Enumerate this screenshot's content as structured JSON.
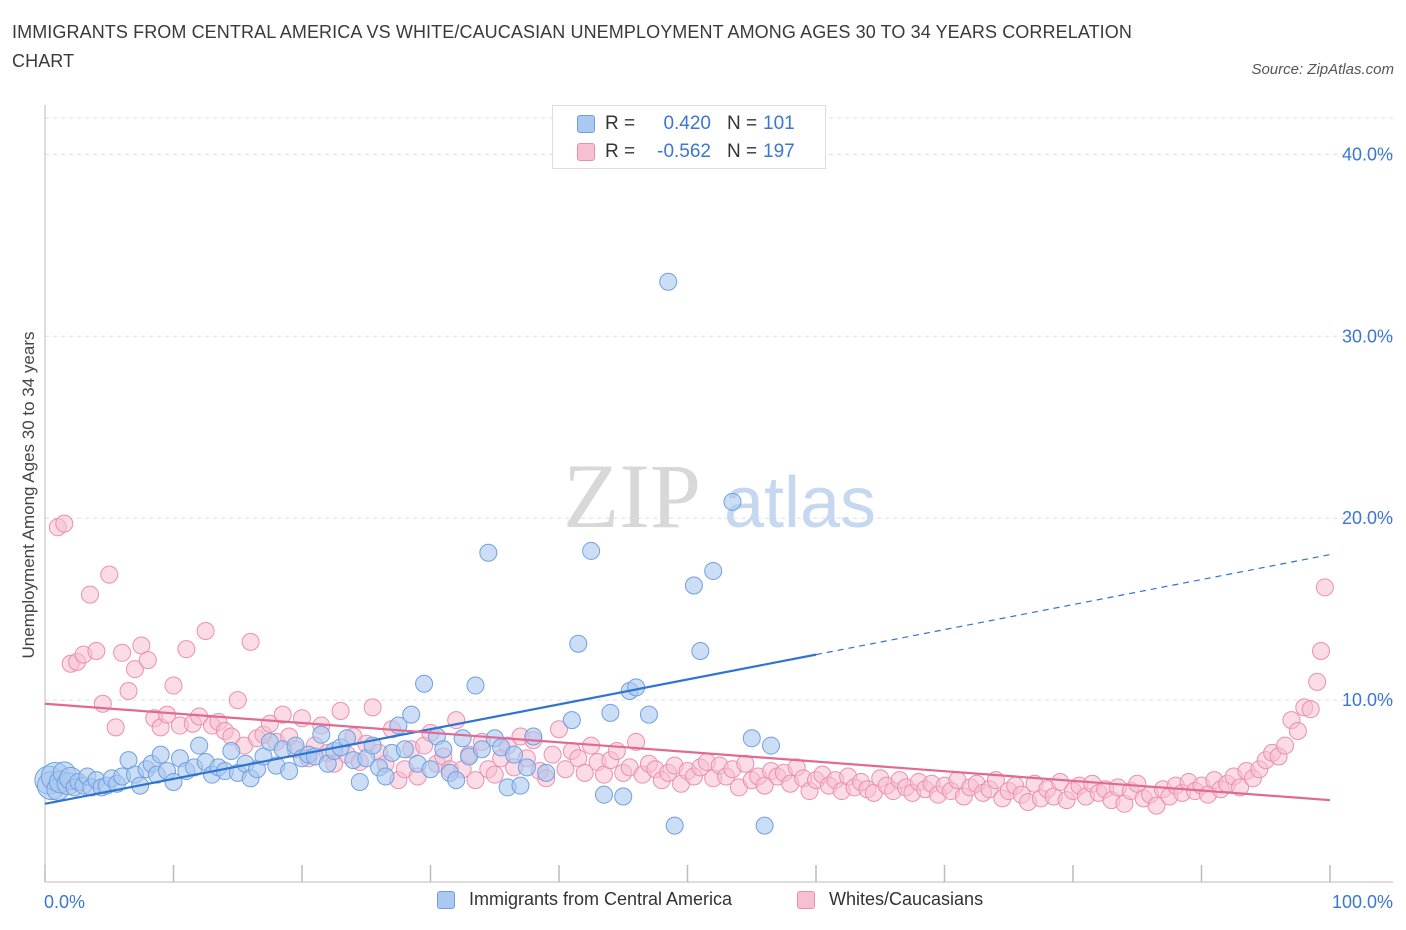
{
  "title": "IMMIGRANTS FROM CENTRAL AMERICA VS WHITE/CAUCASIAN UNEMPLOYMENT AMONG AGES 30 TO 34 YEARS CORRELATION CHART",
  "source": "Source: ZipAtlas.com",
  "watermark": {
    "part1": "ZIP",
    "part2": "atlas"
  },
  "colors": {
    "blue_fill": "#aac8f0",
    "blue_stroke": "#6fa0e0",
    "blue_line": "#2e74d0",
    "pink_fill": "#f7c0d2",
    "pink_stroke": "#ec8fae",
    "pink_line": "#e06a93",
    "axis_text": "#3b77d0",
    "grid": "#dddddd"
  },
  "legend": {
    "rows": [
      {
        "r_label": "R =",
        "r_value": "0.420",
        "n_label": "N =",
        "n_value": "101"
      },
      {
        "r_label": "R =",
        "r_value": "-0.562",
        "n_label": "N =",
        "n_value": "197"
      }
    ]
  },
  "bottom_legend": [
    "Immigrants from Central America",
    "Whites/Caucasians"
  ],
  "chart_data": {
    "type": "scatter",
    "title": "IMMIGRANTS FROM CENTRAL AMERICA VS WHITE/CAUCASIAN UNEMPLOYMENT AMONG AGES 30 TO 34 YEARS CORRELATION CHART",
    "xlabel": "",
    "ylabel": "Unemployment Among Ages 30 to 34 years",
    "xlim": [
      0,
      100
    ],
    "ylim": [
      0,
      42
    ],
    "x_tick_labels": [
      "0.0%",
      "100.0%"
    ],
    "y_ticks": [
      10,
      20,
      30,
      40
    ],
    "y_tick_labels": [
      "10.0%",
      "20.0%",
      "30.0%",
      "40.0%"
    ],
    "grid": true,
    "legend_position": "top-center",
    "series": [
      {
        "name": "Immigrants from Central America",
        "color": "#aac8f0",
        "R": 0.42,
        "N": 101,
        "trend": {
          "x0": 0,
          "y0": 4.3,
          "x1": 60,
          "y1": 12.5,
          "extended_to_x": 100,
          "extended_y": 18.0
        },
        "points": [
          [
            0.3,
            5.6
          ],
          [
            0.5,
            5.3
          ],
          [
            0.8,
            5.8
          ],
          [
            1.0,
            5.1
          ],
          [
            1.2,
            5.5
          ],
          [
            1.5,
            6.0
          ],
          [
            1.8,
            5.4
          ],
          [
            2.0,
            5.7
          ],
          [
            2.3,
            5.2
          ],
          [
            2.6,
            5.5
          ],
          [
            3.0,
            5.3
          ],
          [
            3.3,
            5.8
          ],
          [
            3.6,
            5.2
          ],
          [
            4.0,
            5.6
          ],
          [
            4.4,
            5.2
          ],
          [
            4.8,
            5.3
          ],
          [
            5.2,
            5.7
          ],
          [
            5.6,
            5.4
          ],
          [
            6.0,
            5.8
          ],
          [
            6.5,
            6.7
          ],
          [
            7.0,
            5.9
          ],
          [
            7.4,
            5.3
          ],
          [
            7.9,
            6.2
          ],
          [
            8.3,
            6.5
          ],
          [
            8.7,
            5.9
          ],
          [
            9.0,
            7.0
          ],
          [
            9.5,
            6.1
          ],
          [
            10.0,
            5.5
          ],
          [
            10.5,
            6.8
          ],
          [
            11.0,
            6.1
          ],
          [
            11.6,
            6.3
          ],
          [
            12.0,
            7.5
          ],
          [
            12.5,
            6.6
          ],
          [
            13.0,
            5.9
          ],
          [
            13.5,
            6.3
          ],
          [
            14.0,
            6.1
          ],
          [
            14.5,
            7.2
          ],
          [
            15.0,
            6.0
          ],
          [
            15.6,
            6.5
          ],
          [
            16.0,
            5.7
          ],
          [
            16.5,
            6.2
          ],
          [
            17.0,
            6.9
          ],
          [
            17.5,
            7.7
          ],
          [
            18.0,
            6.4
          ],
          [
            18.5,
            7.3
          ],
          [
            19.0,
            6.1
          ],
          [
            19.5,
            7.5
          ],
          [
            20.0,
            6.8
          ],
          [
            20.5,
            7.0
          ],
          [
            21.0,
            6.9
          ],
          [
            21.5,
            8.1
          ],
          [
            22.0,
            6.5
          ],
          [
            22.5,
            7.2
          ],
          [
            23.0,
            7.4
          ],
          [
            23.5,
            7.9
          ],
          [
            24.0,
            6.7
          ],
          [
            24.5,
            5.5
          ],
          [
            25.0,
            6.8
          ],
          [
            25.5,
            7.5
          ],
          [
            26.0,
            6.3
          ],
          [
            26.5,
            5.8
          ],
          [
            27.0,
            7.1
          ],
          [
            27.5,
            8.6
          ],
          [
            28.0,
            7.3
          ],
          [
            28.5,
            9.2
          ],
          [
            29.0,
            6.5
          ],
          [
            29.5,
            10.9
          ],
          [
            30.0,
            6.2
          ],
          [
            30.5,
            8.0
          ],
          [
            31.0,
            7.3
          ],
          [
            31.5,
            6.0
          ],
          [
            32.0,
            5.6
          ],
          [
            32.5,
            7.9
          ],
          [
            33.0,
            6.9
          ],
          [
            33.5,
            10.8
          ],
          [
            34.0,
            7.3
          ],
          [
            34.5,
            18.1
          ],
          [
            35.0,
            7.9
          ],
          [
            35.5,
            7.4
          ],
          [
            36.0,
            5.2
          ],
          [
            36.5,
            7.0
          ],
          [
            37.0,
            5.3
          ],
          [
            37.5,
            6.3
          ],
          [
            38.0,
            8.0
          ],
          [
            39.0,
            6.0
          ],
          [
            41.0,
            8.9
          ],
          [
            41.5,
            13.1
          ],
          [
            42.5,
            18.2
          ],
          [
            43.5,
            4.8
          ],
          [
            44.0,
            9.3
          ],
          [
            45.0,
            4.7
          ],
          [
            45.5,
            10.5
          ],
          [
            46.0,
            10.7
          ],
          [
            47.0,
            9.2
          ],
          [
            48.5,
            33.0
          ],
          [
            49.0,
            3.1
          ],
          [
            50.5,
            16.3
          ],
          [
            51.0,
            12.7
          ],
          [
            52.0,
            17.1
          ],
          [
            53.5,
            20.9
          ],
          [
            55.0,
            7.9
          ],
          [
            56.0,
            3.1
          ],
          [
            56.5,
            7.5
          ]
        ]
      },
      {
        "name": "Whites/Caucasians",
        "color": "#f7c0d2",
        "R": -0.562,
        "N": 197,
        "trend": {
          "x0": 0,
          "y0": 9.8,
          "x1": 100,
          "y1": 4.5
        },
        "points": [
          [
            1.0,
            19.5
          ],
          [
            1.5,
            19.7
          ],
          [
            2.0,
            12.0
          ],
          [
            2.5,
            12.1
          ],
          [
            3.0,
            12.5
          ],
          [
            3.5,
            15.8
          ],
          [
            4.0,
            12.7
          ],
          [
            4.5,
            9.8
          ],
          [
            5.0,
            16.9
          ],
          [
            5.5,
            8.5
          ],
          [
            6.0,
            12.6
          ],
          [
            6.5,
            10.5
          ],
          [
            7.0,
            11.7
          ],
          [
            7.5,
            13.0
          ],
          [
            8.0,
            12.2
          ],
          [
            8.5,
            9.0
          ],
          [
            9.0,
            8.5
          ],
          [
            9.5,
            9.2
          ],
          [
            10.0,
            10.8
          ],
          [
            10.5,
            8.6
          ],
          [
            11.0,
            12.8
          ],
          [
            11.5,
            8.7
          ],
          [
            12.0,
            9.1
          ],
          [
            12.5,
            13.8
          ],
          [
            13.0,
            8.6
          ],
          [
            13.5,
            8.8
          ],
          [
            14.0,
            8.3
          ],
          [
            14.5,
            8.0
          ],
          [
            15.0,
            10.0
          ],
          [
            15.5,
            7.5
          ],
          [
            16.0,
            13.2
          ],
          [
            16.5,
            7.9
          ],
          [
            17.0,
            8.1
          ],
          [
            17.5,
            8.7
          ],
          [
            18.0,
            7.7
          ],
          [
            18.5,
            9.2
          ],
          [
            19.0,
            8.0
          ],
          [
            19.5,
            7.3
          ],
          [
            20.0,
            9.0
          ],
          [
            20.5,
            6.8
          ],
          [
            21.0,
            7.5
          ],
          [
            21.5,
            8.6
          ],
          [
            22.0,
            7.1
          ],
          [
            22.5,
            6.5
          ],
          [
            23.0,
            9.4
          ],
          [
            23.5,
            7.0
          ],
          [
            24.0,
            8.0
          ],
          [
            24.5,
            6.6
          ],
          [
            25.0,
            7.6
          ],
          [
            25.5,
            9.6
          ],
          [
            26.0,
            7.1
          ],
          [
            26.5,
            6.5
          ],
          [
            27.0,
            8.4
          ],
          [
            27.5,
            5.6
          ],
          [
            28.0,
            6.2
          ],
          [
            28.5,
            7.3
          ],
          [
            29.0,
            5.8
          ],
          [
            29.5,
            7.5
          ],
          [
            30.0,
            8.2
          ],
          [
            30.5,
            6.5
          ],
          [
            31.0,
            6.9
          ],
          [
            31.5,
            6.2
          ],
          [
            32.0,
            8.9
          ],
          [
            32.5,
            6.2
          ],
          [
            33.0,
            7.0
          ],
          [
            33.5,
            5.6
          ],
          [
            34.0,
            7.7
          ],
          [
            34.5,
            6.2
          ],
          [
            35.0,
            5.9
          ],
          [
            35.5,
            6.8
          ],
          [
            36.0,
            7.5
          ],
          [
            36.5,
            6.3
          ],
          [
            37.0,
            8.0
          ],
          [
            37.5,
            6.8
          ],
          [
            38.0,
            7.8
          ],
          [
            38.5,
            6.1
          ],
          [
            39.0,
            5.7
          ],
          [
            39.5,
            7.0
          ],
          [
            40.0,
            8.4
          ],
          [
            40.5,
            6.2
          ],
          [
            41.0,
            7.2
          ],
          [
            41.5,
            6.8
          ],
          [
            42.0,
            6.0
          ],
          [
            42.5,
            7.5
          ],
          [
            43.0,
            6.6
          ],
          [
            43.5,
            5.9
          ],
          [
            44.0,
            6.7
          ],
          [
            44.5,
            7.2
          ],
          [
            45.0,
            6.0
          ],
          [
            45.5,
            6.3
          ],
          [
            46.0,
            7.7
          ],
          [
            46.5,
            5.9
          ],
          [
            47.0,
            6.5
          ],
          [
            47.5,
            6.2
          ],
          [
            48.0,
            5.6
          ],
          [
            48.5,
            6.0
          ],
          [
            49.0,
            6.4
          ],
          [
            49.5,
            5.4
          ],
          [
            50.0,
            6.1
          ],
          [
            50.5,
            5.8
          ],
          [
            51.0,
            6.3
          ],
          [
            51.5,
            6.6
          ],
          [
            52.0,
            5.7
          ],
          [
            52.5,
            6.4
          ],
          [
            53.0,
            5.8
          ],
          [
            53.5,
            6.2
          ],
          [
            54.0,
            5.2
          ],
          [
            54.5,
            6.5
          ],
          [
            55.0,
            5.6
          ],
          [
            55.5,
            5.8
          ],
          [
            56.0,
            5.3
          ],
          [
            56.5,
            6.1
          ],
          [
            57.0,
            5.8
          ],
          [
            57.5,
            6.0
          ],
          [
            58.0,
            5.4
          ],
          [
            58.5,
            6.3
          ],
          [
            59.0,
            5.7
          ],
          [
            59.5,
            5.0
          ],
          [
            60.0,
            5.6
          ],
          [
            60.5,
            5.9
          ],
          [
            61.0,
            5.3
          ],
          [
            61.5,
            5.6
          ],
          [
            62.0,
            5.0
          ],
          [
            62.5,
            5.8
          ],
          [
            63.0,
            5.2
          ],
          [
            63.5,
            5.5
          ],
          [
            64.0,
            5.1
          ],
          [
            64.5,
            4.9
          ],
          [
            65.0,
            5.7
          ],
          [
            65.5,
            5.3
          ],
          [
            66.0,
            5.0
          ],
          [
            66.5,
            5.6
          ],
          [
            67.0,
            5.2
          ],
          [
            67.5,
            4.9
          ],
          [
            68.0,
            5.5
          ],
          [
            68.5,
            5.1
          ],
          [
            69.0,
            5.4
          ],
          [
            69.5,
            4.8
          ],
          [
            70.0,
            5.3
          ],
          [
            70.5,
            5.0
          ],
          [
            71.0,
            5.6
          ],
          [
            71.5,
            4.7
          ],
          [
            72.0,
            5.2
          ],
          [
            72.5,
            5.4
          ],
          [
            73.0,
            4.9
          ],
          [
            73.5,
            5.1
          ],
          [
            74.0,
            5.6
          ],
          [
            74.5,
            4.6
          ],
          [
            75.0,
            5.0
          ],
          [
            75.5,
            5.3
          ],
          [
            76.0,
            4.8
          ],
          [
            76.5,
            4.4
          ],
          [
            77.0,
            5.4
          ],
          [
            77.5,
            4.6
          ],
          [
            78.0,
            5.1
          ],
          [
            78.5,
            4.7
          ],
          [
            79.0,
            5.5
          ],
          [
            79.5,
            4.5
          ],
          [
            80.0,
            5.0
          ],
          [
            80.5,
            5.3
          ],
          [
            81.0,
            4.7
          ],
          [
            81.5,
            5.4
          ],
          [
            82.0,
            4.9
          ],
          [
            82.5,
            5.1
          ],
          [
            83.0,
            4.5
          ],
          [
            83.5,
            5.2
          ],
          [
            84.0,
            4.3
          ],
          [
            84.5,
            5.0
          ],
          [
            85.0,
            5.4
          ],
          [
            85.5,
            4.6
          ],
          [
            86.0,
            4.8
          ],
          [
            86.5,
            4.2
          ],
          [
            87.0,
            5.1
          ],
          [
            87.5,
            4.7
          ],
          [
            88.0,
            5.3
          ],
          [
            88.5,
            4.9
          ],
          [
            89.0,
            5.5
          ],
          [
            89.5,
            5.0
          ],
          [
            90.0,
            5.3
          ],
          [
            90.5,
            4.8
          ],
          [
            91.0,
            5.6
          ],
          [
            91.5,
            5.1
          ],
          [
            92.0,
            5.4
          ],
          [
            92.5,
            5.8
          ],
          [
            93.0,
            5.2
          ],
          [
            93.5,
            6.1
          ],
          [
            94.0,
            5.7
          ],
          [
            94.5,
            6.2
          ],
          [
            95.0,
            6.7
          ],
          [
            95.5,
            7.1
          ],
          [
            96.0,
            6.9
          ],
          [
            96.5,
            7.5
          ],
          [
            97.0,
            8.9
          ],
          [
            97.5,
            8.3
          ],
          [
            98.0,
            9.6
          ],
          [
            98.5,
            9.5
          ],
          [
            99.0,
            11.0
          ],
          [
            99.3,
            12.7
          ],
          [
            99.6,
            16.2
          ]
        ]
      }
    ]
  }
}
